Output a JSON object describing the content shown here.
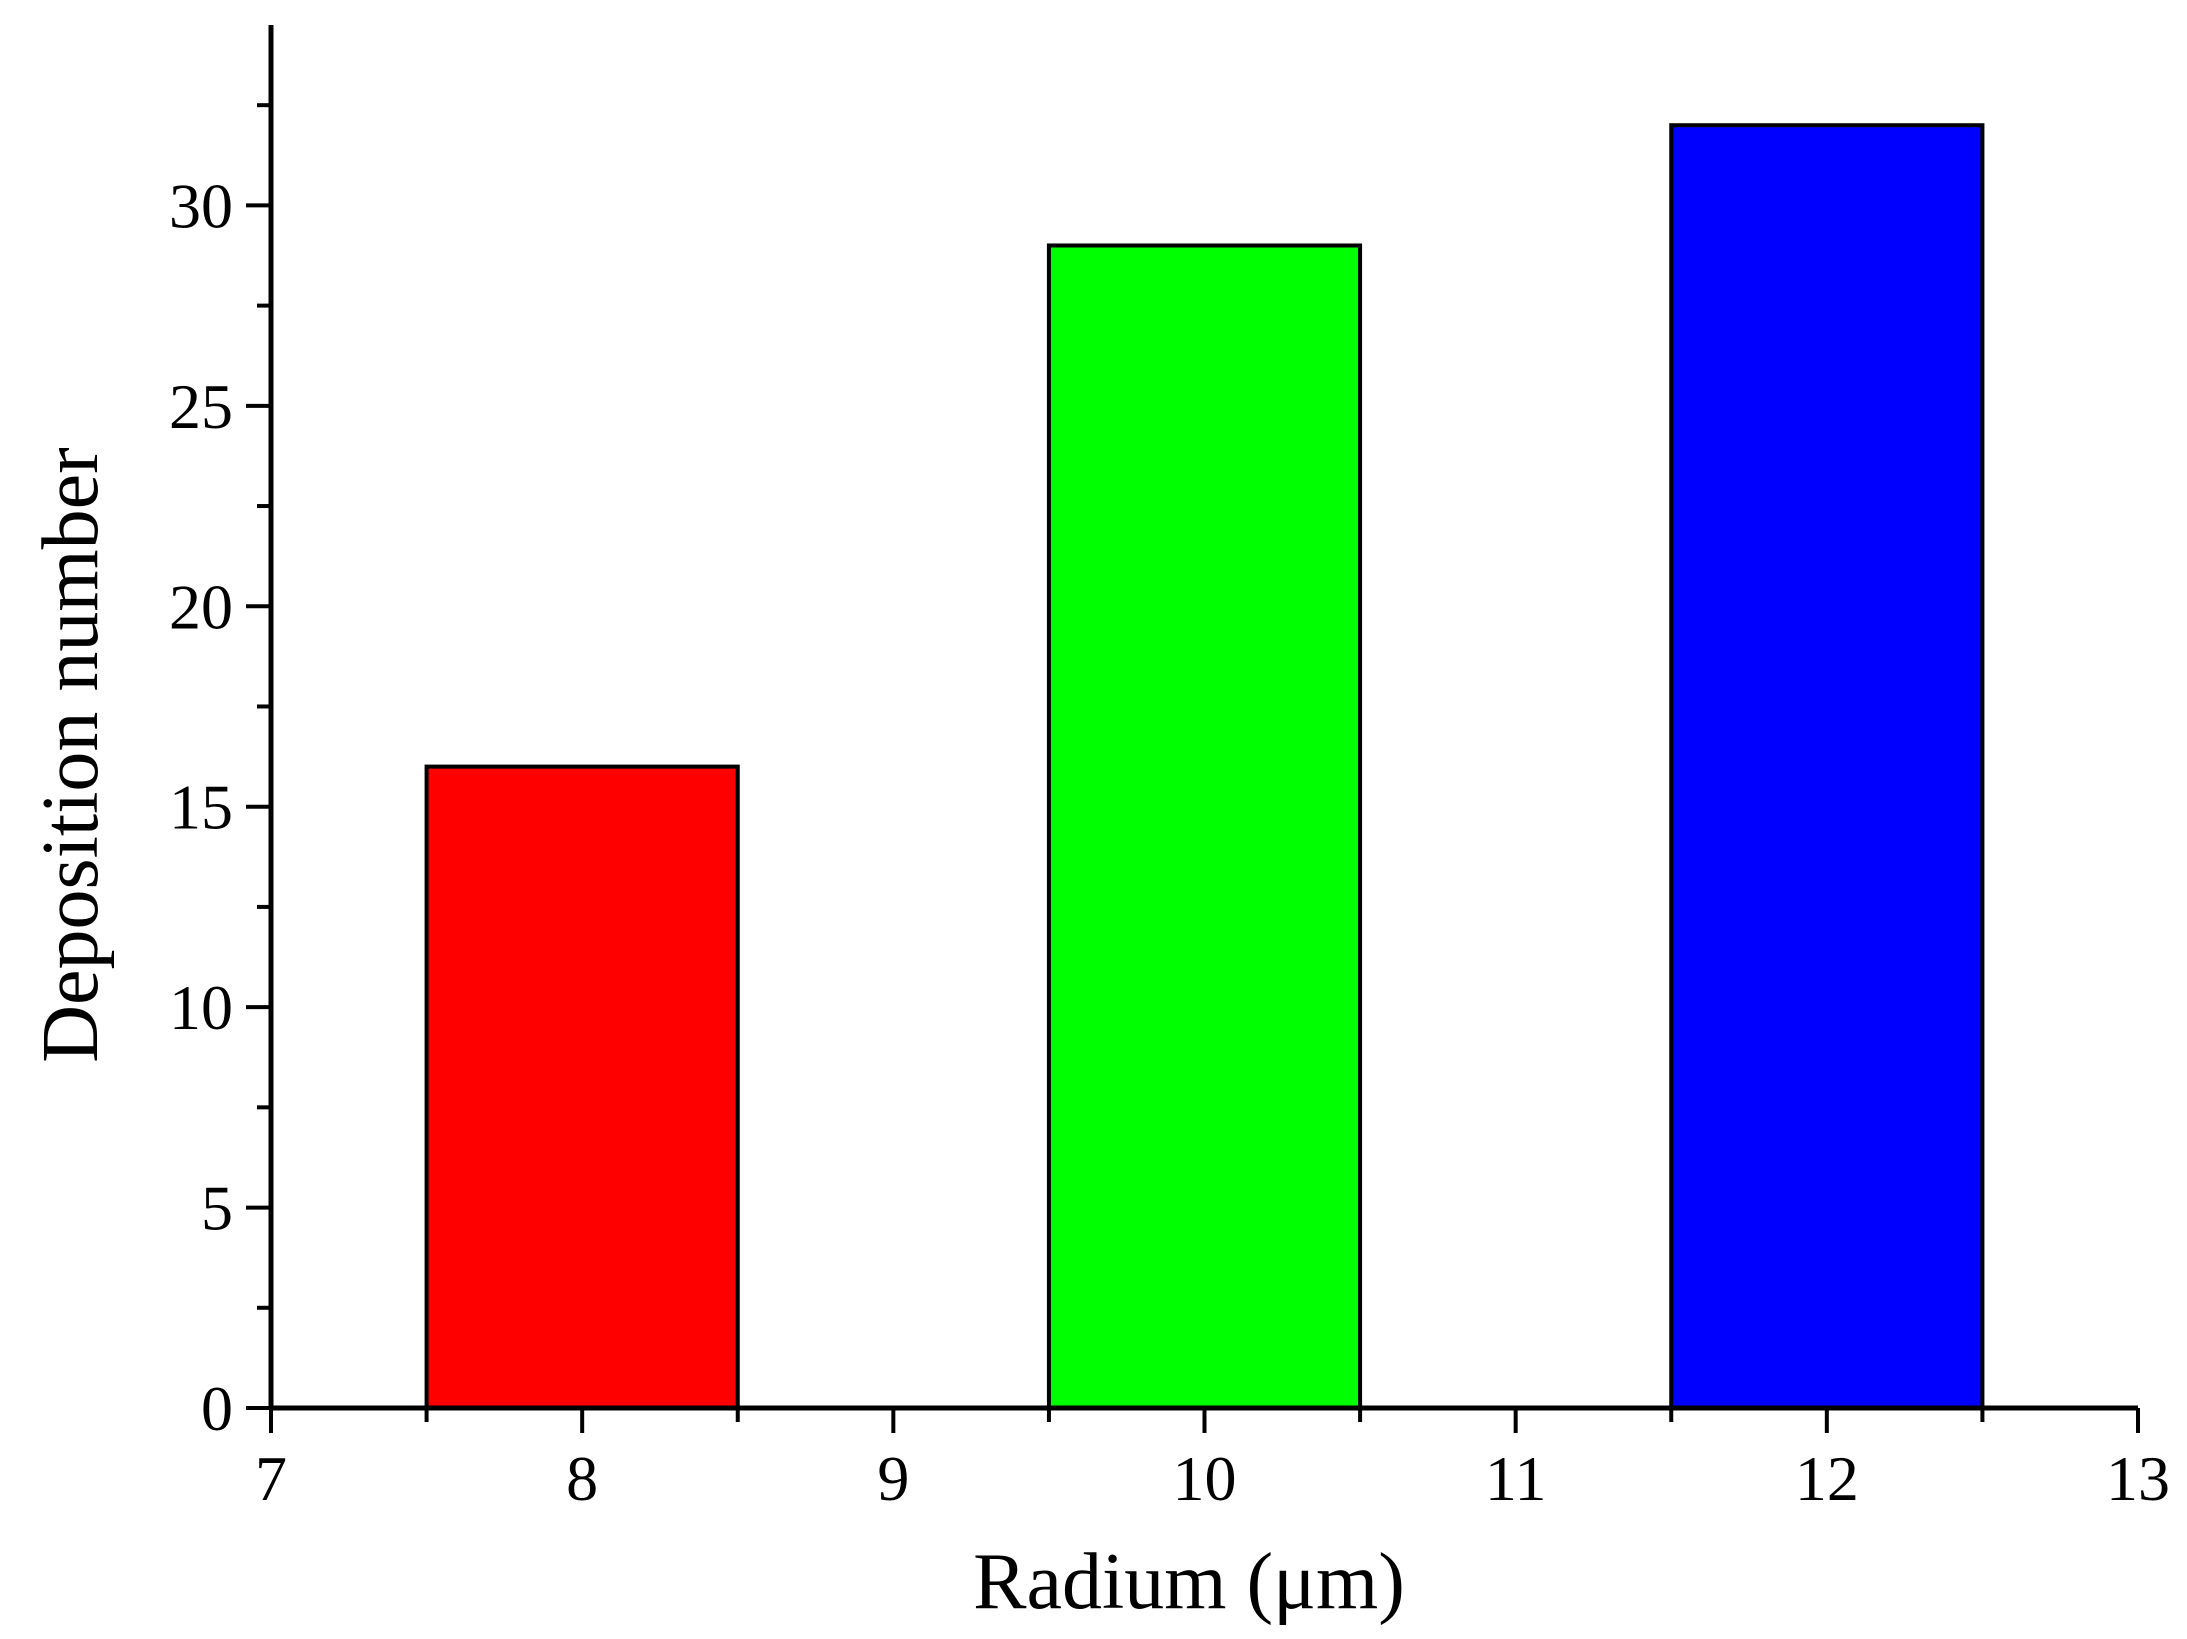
{
  "chart_data": {
    "type": "bar",
    "title": "",
    "xlabel": "Radium (μm)",
    "ylabel": "Deposition number",
    "xlim": [
      7,
      13
    ],
    "ylim": [
      0,
      34.5
    ],
    "x_ticks": [
      7,
      8,
      9,
      10,
      11,
      12,
      13
    ],
    "y_ticks": [
      0,
      5,
      10,
      15,
      20,
      25,
      30
    ],
    "bar_width": 1,
    "grid": false,
    "legend": "none",
    "bars": [
      {
        "x": 8,
        "value": 16,
        "color": "#ff0000"
      },
      {
        "x": 10,
        "value": 29,
        "color": "#00ff00"
      },
      {
        "x": 12,
        "value": 32,
        "color": "#0000ff"
      }
    ]
  }
}
